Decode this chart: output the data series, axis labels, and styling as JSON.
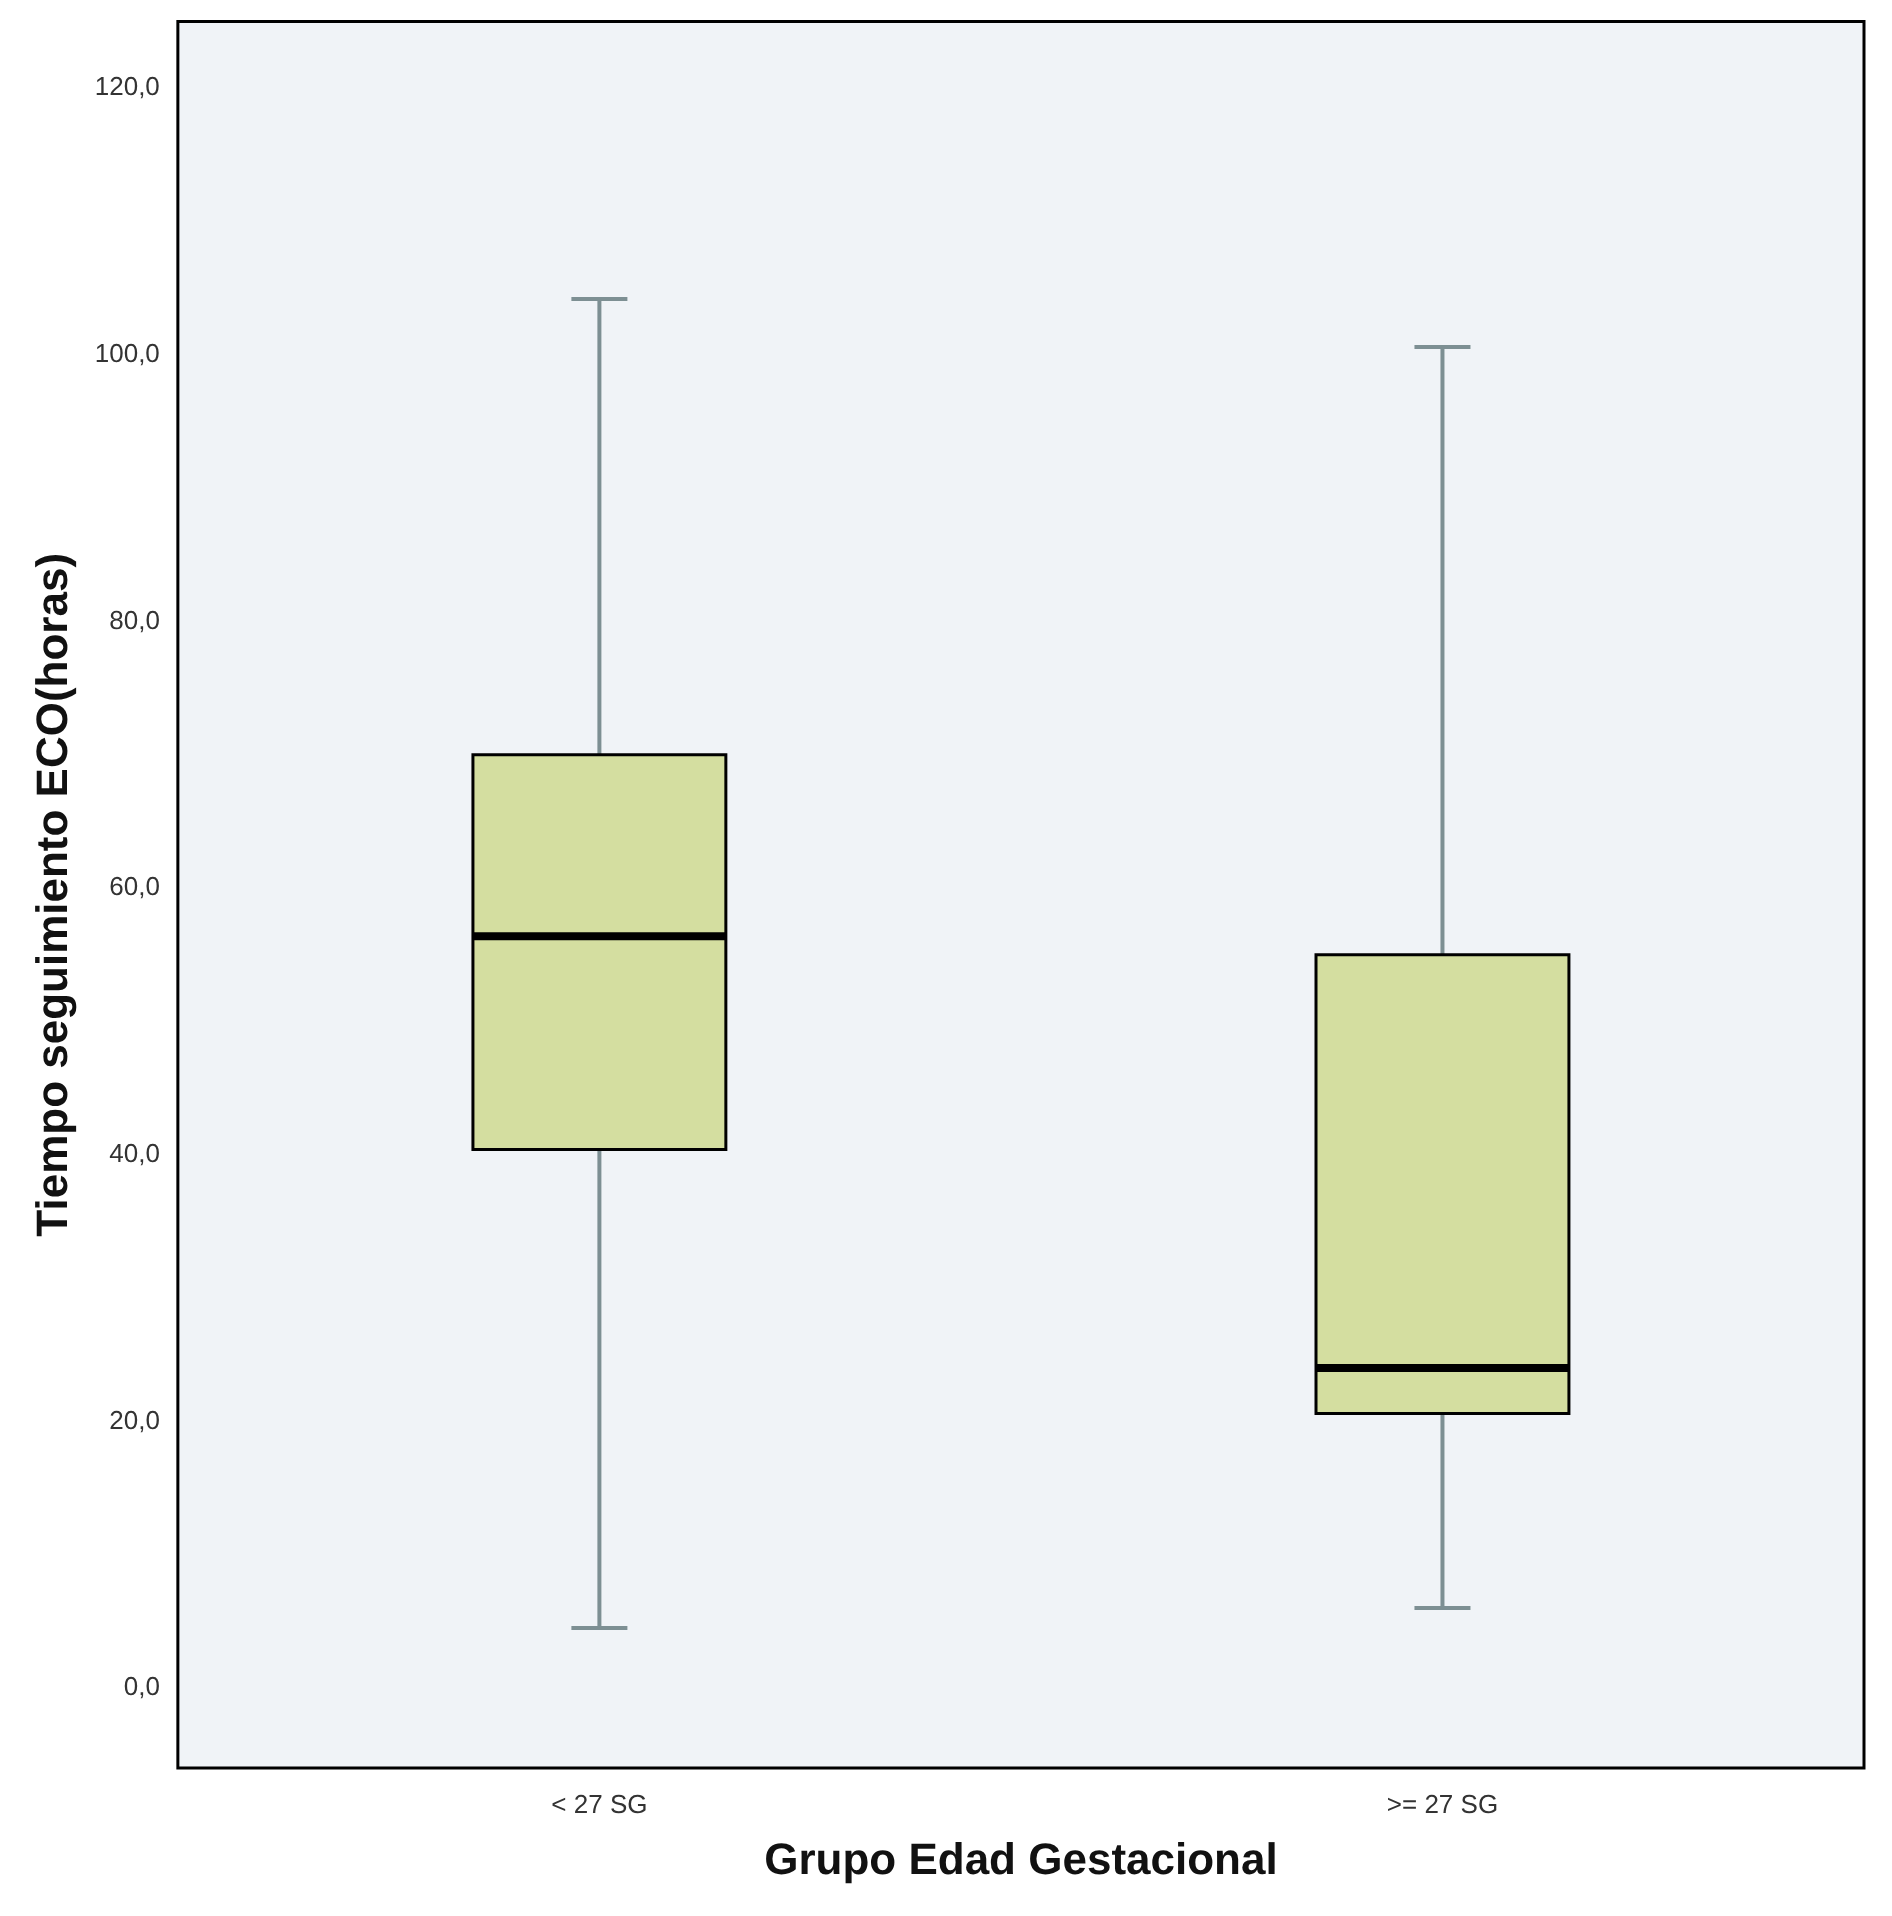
{
  "chart_data": {
    "type": "box",
    "xlabel": "Grupo Edad Gestacional",
    "ylabel": "Tiempo seguimiento ECO(horas)",
    "categories": [
      "< 27 SG",
      ">= 27 SG"
    ],
    "boxes": [
      {
        "low": 4.5,
        "q1": 40.4,
        "median": 56.4,
        "q3": 70.0,
        "high": 104.2
      },
      {
        "low": 6.0,
        "q1": 20.6,
        "median": 24.0,
        "q3": 55.0,
        "high": 100.6
      }
    ],
    "color": "#d4dea0",
    "ylim": [
      -6,
      125
    ],
    "yticks": [
      {
        "value": 0,
        "label": "0,0"
      },
      {
        "value": 20,
        "label": "20,0"
      },
      {
        "value": 40,
        "label": "40,0"
      },
      {
        "value": 60,
        "label": "60,0"
      },
      {
        "value": 80,
        "label": "80,0"
      },
      {
        "value": 100,
        "label": "100,0"
      },
      {
        "value": 120,
        "label": "120,0"
      }
    ]
  }
}
